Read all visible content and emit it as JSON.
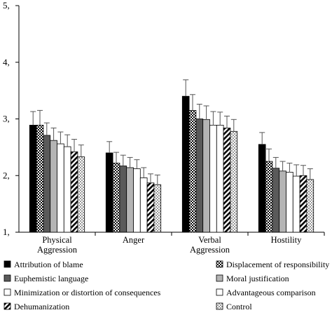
{
  "chart_data": {
    "type": "bar",
    "title": "",
    "xlabel": "",
    "ylabel": "",
    "ylim": [
      1,
      5
    ],
    "yticks": [
      1,
      2,
      3,
      4,
      5
    ],
    "ytick_labels": [
      "1,",
      "2,",
      "3,",
      "4,",
      "5,"
    ],
    "grid": false,
    "legend_position": "bottom",
    "error_bars": true,
    "categories": [
      [
        "Physical",
        "Aggression"
      ],
      [
        "Anger"
      ],
      [
        "Verbal",
        "Aggression"
      ],
      [
        "Hostility"
      ]
    ],
    "series": [
      {
        "name": "Attribution of blame",
        "pattern": "solid-black",
        "values": [
          2.89,
          2.4,
          3.4,
          2.55
        ],
        "errors": [
          0.24,
          0.2,
          0.29,
          0.21
        ]
      },
      {
        "name": "Displacement of responsibility",
        "pattern": "black-white-dots",
        "values": [
          2.89,
          2.22,
          3.15,
          2.25
        ],
        "errors": [
          0.26,
          0.19,
          0.28,
          0.22
        ]
      },
      {
        "name": "Euphemistic language",
        "pattern": "dark-gray",
        "values": [
          2.71,
          2.17,
          3.0,
          2.13
        ],
        "errors": [
          0.22,
          0.19,
          0.26,
          0.19
        ]
      },
      {
        "name": "Moral justification",
        "pattern": "light-gray",
        "values": [
          2.62,
          2.14,
          2.99,
          2.08
        ],
        "errors": [
          0.22,
          0.18,
          0.24,
          0.17
        ]
      },
      {
        "name": "Minimization or distortion of consequences",
        "pattern": "white",
        "values": [
          2.56,
          2.12,
          2.89,
          2.06
        ],
        "errors": [
          0.21,
          0.16,
          0.24,
          0.16
        ]
      },
      {
        "name": "Advantageous comparison",
        "pattern": "white",
        "values": [
          2.51,
          1.96,
          2.89,
          1.99
        ],
        "errors": [
          0.21,
          0.18,
          0.23,
          0.2
        ]
      },
      {
        "name": "Dehumanization",
        "pattern": "diagonal-stripes",
        "values": [
          2.42,
          1.87,
          2.84,
          2.0
        ],
        "errors": [
          0.22,
          0.16,
          0.21,
          0.18
        ]
      },
      {
        "name": "Control",
        "pattern": "light-checker",
        "values": [
          2.33,
          1.84,
          2.78,
          1.93
        ],
        "errors": [
          0.21,
          0.17,
          0.21,
          0.19
        ]
      }
    ]
  }
}
